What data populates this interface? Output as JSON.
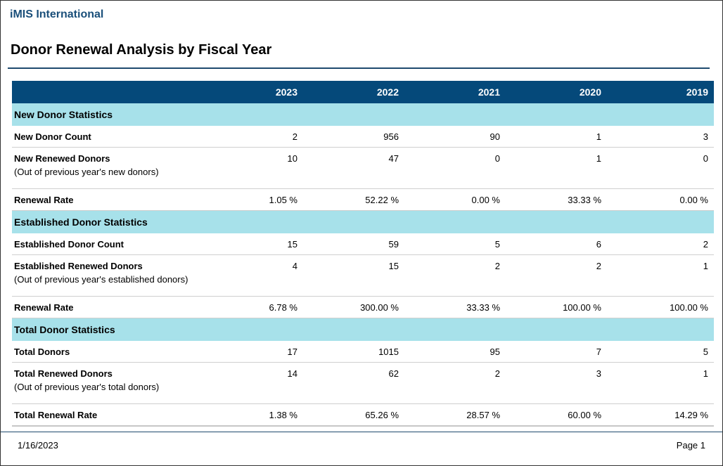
{
  "header": {
    "org_name": "iMIS International",
    "report_title": "Donor Renewal Analysis by Fiscal Year"
  },
  "table": {
    "years": [
      "2023",
      "2022",
      "2021",
      "2020",
      "2019"
    ],
    "sections": [
      {
        "title": "New Donor Statistics",
        "rows": [
          {
            "label": "New Donor Count",
            "sub": "",
            "values": [
              "2",
              "956",
              "90",
              "1",
              "3"
            ]
          },
          {
            "label": "New Renewed Donors",
            "sub": "(Out of previous year's new donors)",
            "values": [
              "10",
              "47",
              "0",
              "1",
              "0"
            ]
          },
          {
            "label": "Renewal Rate",
            "sub": "",
            "values": [
              "1.05 %",
              "52.22 %",
              "0.00 %",
              "33.33 %",
              "0.00 %"
            ]
          }
        ]
      },
      {
        "title": "Established Donor Statistics",
        "rows": [
          {
            "label": "Established Donor Count",
            "sub": "",
            "values": [
              "15",
              "59",
              "5",
              "6",
              "2"
            ]
          },
          {
            "label": "Established Renewed Donors",
            "sub": "(Out of previous year's established donors)",
            "values": [
              "4",
              "15",
              "2",
              "2",
              "1"
            ]
          },
          {
            "label": "Renewal Rate",
            "sub": "",
            "values": [
              "6.78 %",
              "300.00 %",
              "33.33 %",
              "100.00 %",
              "100.00 %"
            ]
          }
        ]
      },
      {
        "title": "Total Donor Statistics",
        "rows": [
          {
            "label": "Total Donors",
            "sub": "",
            "values": [
              "17",
              "1015",
              "95",
              "7",
              "5"
            ]
          },
          {
            "label": "Total Renewed Donors",
            "sub": "(Out of previous year's total donors)",
            "values": [
              "14",
              "62",
              "2",
              "3",
              "1"
            ]
          },
          {
            "label": "Total Renewal Rate",
            "sub": "",
            "values": [
              "1.38 %",
              "65.26 %",
              "28.57 %",
              "60.00 %",
              "14.29 %"
            ]
          }
        ]
      }
    ]
  },
  "footer": {
    "date": "1/16/2023",
    "page_label": "Page 1"
  },
  "colors": {
    "header_bg": "#05497a",
    "section_bg": "#a7e1ea",
    "org_text": "#1a4f7a"
  }
}
